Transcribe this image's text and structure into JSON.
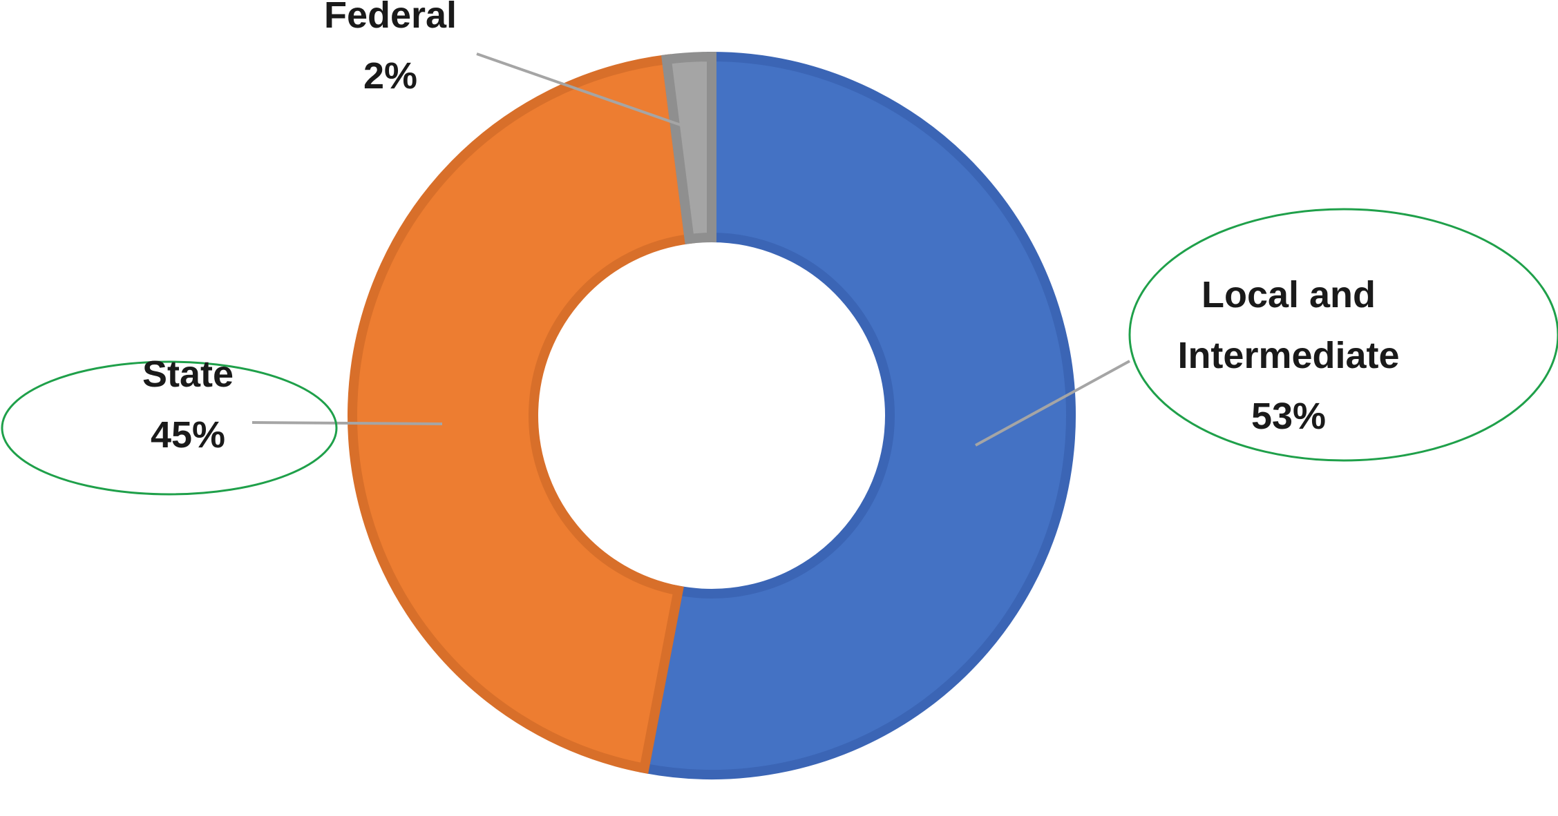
{
  "chart_data": {
    "type": "pie",
    "variant": "donut",
    "start_angle_deg": 0,
    "direction": "clockwise",
    "slices": [
      {
        "name": "Local and Intermediate",
        "label_lines": [
          "Local and",
          "Intermediate"
        ],
        "pct_label": "53%",
        "value": 53,
        "color": "#4472C4",
        "edge": "#3B65B5",
        "highlight_ellipse": true
      },
      {
        "name": "State",
        "label_lines": [
          "State"
        ],
        "pct_label": "45%",
        "value": 45,
        "color": "#ED7D31",
        "edge": "#D86F2A",
        "highlight_ellipse": true
      },
      {
        "name": "Federal",
        "label_lines": [
          "Federal"
        ],
        "pct_label": "2%",
        "value": 2,
        "color": "#A5A5A5",
        "edge": "#8F8F8F",
        "highlight_ellipse": false
      }
    ],
    "ellipse_color": "#1FA04A",
    "leader_color": "#A5A5A5"
  }
}
